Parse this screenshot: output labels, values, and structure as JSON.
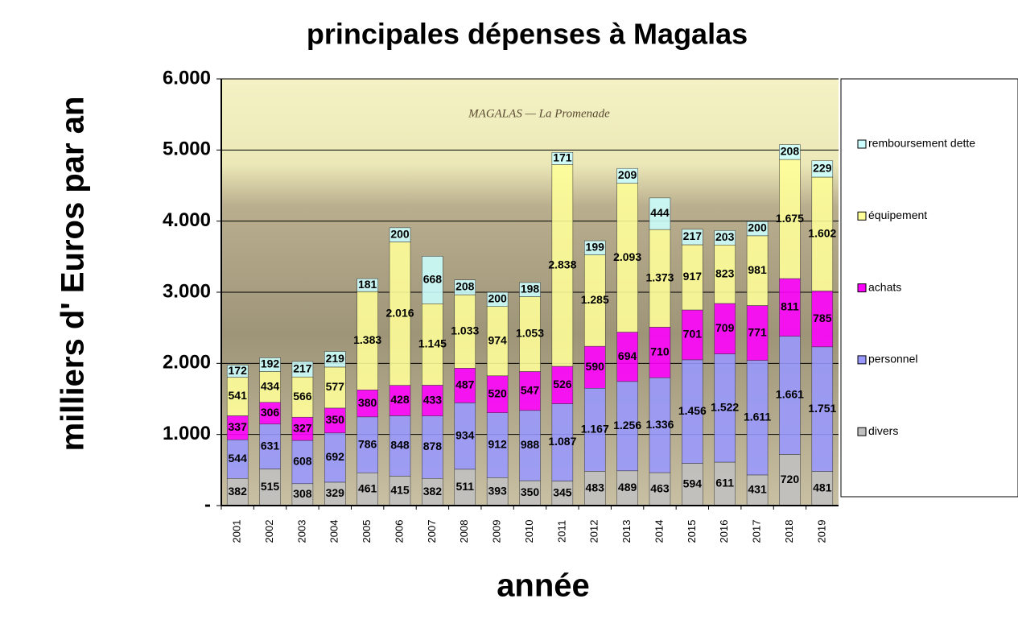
{
  "chart_data": {
    "type": "stacked_bar",
    "title": "principales dépenses à Magalas",
    "y_label": "milliers d' Euros par an",
    "x_label": "année",
    "background_caption": "MAGALAS — La Promenade",
    "categories": [
      "2001",
      "2002",
      "2003",
      "2004",
      "2005",
      "2006",
      "2007",
      "2008",
      "2009",
      "2010",
      "2011",
      "2012",
      "2013",
      "2014",
      "2015",
      "2016",
      "2017",
      "2018",
      "2019"
    ],
    "series": [
      {
        "name": "divers",
        "color": "#c0c0c0",
        "values": [
          382,
          515,
          308,
          329,
          461,
          415,
          382,
          511,
          393,
          350,
          345,
          483,
          489,
          463,
          594,
          611,
          431,
          720,
          481
        ],
        "value_labels": [
          "382",
          "515",
          "308",
          "329",
          "461",
          "415",
          "382",
          "511",
          "393",
          "350",
          "345",
          "483",
          "489",
          "463",
          "594",
          "611",
          "431",
          "720",
          "481"
        ]
      },
      {
        "name": "personnel",
        "color": "#9999ff",
        "values": [
          544,
          631,
          608,
          692,
          786,
          848,
          878,
          934,
          912,
          988,
          1087,
          1167,
          1256,
          1336,
          1456,
          1522,
          1611,
          1661,
          1751
        ],
        "value_labels": [
          "544",
          "631",
          "608",
          "692",
          "786",
          "848",
          "878",
          "934",
          "912",
          "988",
          "1.087",
          "1.167",
          "1.256",
          "1.336",
          "1.456",
          "1.522",
          "1.611",
          "1.661",
          "1.751"
        ]
      },
      {
        "name": "achats",
        "color": "#ff00ff",
        "values": [
          337,
          306,
          327,
          350,
          380,
          428,
          433,
          487,
          520,
          547,
          526,
          590,
          694,
          710,
          701,
          709,
          771,
          811,
          785
        ],
        "value_labels": [
          "337",
          "306",
          "327",
          "350",
          "380",
          "428",
          "433",
          "487",
          "520",
          "547",
          "526",
          "590",
          "694",
          "710",
          "701",
          "709",
          "771",
          "811",
          "785"
        ]
      },
      {
        "name": "équipement",
        "color": "#ffff99",
        "values": [
          541,
          434,
          566,
          577,
          1383,
          2016,
          1145,
          1033,
          974,
          1053,
          2838,
          1285,
          2093,
          1373,
          917,
          823,
          981,
          1675,
          1602
        ],
        "value_labels": [
          "541",
          "434",
          "566",
          "577",
          "1.383",
          "2.016",
          "1.145",
          "1.033",
          "974",
          "1.053",
          "2.838",
          "1.285",
          "2.093",
          "1.373",
          "917",
          "823",
          "981",
          "1.675",
          "1.602"
        ]
      },
      {
        "name": "remboursement dette",
        "color": "#ccffff",
        "values": [
          172,
          192,
          217,
          219,
          181,
          200,
          668,
          208,
          200,
          198,
          171,
          199,
          209,
          444,
          217,
          203,
          200,
          208,
          229
        ],
        "value_labels": [
          "172",
          "192",
          "217",
          "219",
          "181",
          "200",
          "668",
          "208",
          "200",
          "198",
          "171",
          "199",
          "209",
          "444",
          "217",
          "203",
          "200",
          "208",
          "229"
        ]
      }
    ],
    "ylim": [
      0,
      6000
    ],
    "yticks": [
      {
        "value": 0,
        "label": "-"
      },
      {
        "value": 1000,
        "label": "1.000"
      },
      {
        "value": 2000,
        "label": "2.000"
      },
      {
        "value": 3000,
        "label": "3.000"
      },
      {
        "value": 4000,
        "label": "4.000"
      },
      {
        "value": 5000,
        "label": "5.000"
      },
      {
        "value": 6000,
        "label": "6.000"
      }
    ],
    "grid": true,
    "legend": "right"
  }
}
